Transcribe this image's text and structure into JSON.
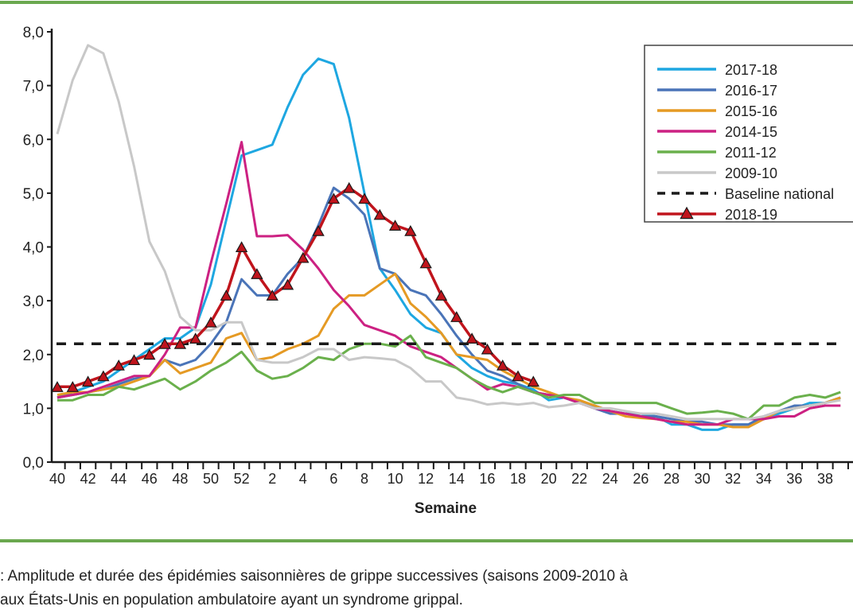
{
  "chart_data": {
    "type": "line",
    "xlabel": "Semaine",
    "ylabel": "",
    "ylim": [
      0,
      8
    ],
    "yticks": [
      "0,0",
      "1,0",
      "2,0",
      "3,0",
      "4,0",
      "5,0",
      "6,0",
      "7,0",
      "8,0"
    ],
    "x": [
      40,
      41,
      42,
      43,
      44,
      45,
      46,
      47,
      48,
      49,
      50,
      51,
      52,
      1,
      2,
      3,
      4,
      5,
      6,
      7,
      8,
      9,
      10,
      11,
      12,
      13,
      14,
      15,
      16,
      17,
      18,
      19,
      20,
      21,
      22,
      23,
      24,
      25,
      26,
      27,
      28,
      29,
      30,
      31,
      32,
      33,
      34,
      35,
      36,
      37,
      38,
      39
    ],
    "xtick_labels": [
      "40",
      "42",
      "44",
      "46",
      "48",
      "50",
      "52",
      "2",
      "4",
      "6",
      "8",
      "10",
      "12",
      "14",
      "16",
      "18",
      "20",
      "22",
      "24",
      "26",
      "28",
      "30",
      "32",
      "34",
      "36",
      "38"
    ],
    "grid": false,
    "legend_placement": "top-right",
    "series": [
      {
        "name": "2017-18",
        "color": "#1ea7e1",
        "values": [
          1.2,
          1.3,
          1.4,
          1.5,
          1.7,
          1.9,
          2.1,
          2.3,
          2.3,
          2.5,
          3.3,
          4.5,
          5.7,
          5.8,
          5.9,
          6.6,
          7.2,
          7.5,
          7.4,
          6.4,
          5.0,
          3.6,
          3.2,
          2.75,
          2.5,
          2.4,
          2.0,
          1.75,
          1.6,
          1.5,
          1.45,
          1.35,
          1.15,
          1.2,
          1.1,
          1.05,
          0.95,
          0.9,
          0.9,
          0.85,
          0.7,
          0.7,
          0.6,
          0.6,
          0.7,
          0.7,
          0.8,
          0.9,
          1.0,
          1.1,
          1.1,
          1.2
        ]
      },
      {
        "name": "2016-17",
        "color": "#4a74b8",
        "values": [
          1.2,
          1.25,
          1.3,
          1.35,
          1.45,
          1.55,
          1.6,
          1.9,
          1.8,
          1.9,
          2.2,
          2.6,
          3.4,
          3.1,
          3.1,
          3.5,
          3.8,
          4.4,
          5.1,
          4.9,
          4.6,
          3.6,
          3.5,
          3.2,
          3.1,
          2.75,
          2.35,
          2.0,
          1.7,
          1.6,
          1.45,
          1.3,
          1.25,
          1.2,
          1.1,
          1.0,
          0.9,
          0.9,
          0.85,
          0.85,
          0.8,
          0.75,
          0.75,
          0.7,
          0.7,
          0.7,
          0.85,
          0.95,
          1.05,
          1.05,
          1.1,
          1.2
        ]
      },
      {
        "name": "2015-16",
        "color": "#e59a24",
        "values": [
          1.25,
          1.3,
          1.3,
          1.35,
          1.4,
          1.5,
          1.6,
          1.9,
          1.65,
          1.75,
          1.85,
          2.3,
          2.4,
          1.9,
          1.95,
          2.1,
          2.2,
          2.35,
          2.85,
          3.1,
          3.1,
          3.3,
          3.5,
          2.95,
          2.7,
          2.4,
          2.0,
          1.95,
          1.9,
          1.7,
          1.55,
          1.4,
          1.3,
          1.2,
          1.15,
          1.05,
          0.95,
          0.85,
          0.82,
          0.8,
          0.75,
          0.75,
          0.7,
          0.7,
          0.65,
          0.65,
          0.8,
          0.95,
          1.0,
          1.05,
          1.1,
          1.2
        ]
      },
      {
        "name": "2014-15",
        "color": "#cc2182",
        "values": [
          1.2,
          1.25,
          1.3,
          1.4,
          1.5,
          1.6,
          1.6,
          2.0,
          2.5,
          2.5,
          3.7,
          4.8,
          5.95,
          4.2,
          4.2,
          4.22,
          3.95,
          3.6,
          3.2,
          2.9,
          2.55,
          2.45,
          2.35,
          2.15,
          2.05,
          1.95,
          1.75,
          1.55,
          1.35,
          1.45,
          1.4,
          1.3,
          1.25,
          1.2,
          1.1,
          1.0,
          0.95,
          0.9,
          0.85,
          0.8,
          0.75,
          0.7,
          0.7,
          0.7,
          0.8,
          0.8,
          0.8,
          0.85,
          0.85,
          1.0,
          1.05,
          1.05
        ]
      },
      {
        "name": "2011-12",
        "color": "#6ab04c",
        "values": [
          1.15,
          1.15,
          1.25,
          1.25,
          1.4,
          1.35,
          1.45,
          1.55,
          1.35,
          1.5,
          1.7,
          1.85,
          2.05,
          1.7,
          1.55,
          1.6,
          1.75,
          1.95,
          1.9,
          2.1,
          2.2,
          2.2,
          2.15,
          2.35,
          1.95,
          1.85,
          1.75,
          1.55,
          1.4,
          1.3,
          1.4,
          1.3,
          1.2,
          1.25,
          1.25,
          1.1,
          1.1,
          1.1,
          1.1,
          1.1,
          1.0,
          0.9,
          0.92,
          0.95,
          0.9,
          0.8,
          1.05,
          1.05,
          1.2,
          1.25,
          1.2,
          1.3
        ]
      },
      {
        "name": "2009-10",
        "color": "#c8c8c8",
        "values": [
          6.1,
          7.1,
          7.75,
          7.6,
          6.7,
          5.5,
          4.1,
          3.55,
          2.7,
          2.45,
          2.45,
          2.6,
          2.6,
          1.9,
          1.85,
          1.85,
          1.95,
          2.1,
          2.1,
          1.9,
          1.95,
          1.93,
          1.9,
          1.75,
          1.5,
          1.5,
          1.2,
          1.15,
          1.07,
          1.1,
          1.07,
          1.1,
          1.02,
          1.05,
          1.1,
          1.0,
          1.0,
          0.95,
          0.9,
          0.9,
          0.85,
          0.8,
          0.8,
          0.8,
          0.8,
          0.8,
          0.85,
          0.95,
          1.0,
          1.05,
          1.1,
          1.15
        ]
      },
      {
        "name": "Baseline national",
        "color": "#1a1a1a",
        "dashed": true,
        "values": [
          2.2,
          2.2,
          2.2,
          2.2,
          2.2,
          2.2,
          2.2,
          2.2,
          2.2,
          2.2,
          2.2,
          2.2,
          2.2,
          2.2,
          2.2,
          2.2,
          2.2,
          2.2,
          2.2,
          2.2,
          2.2,
          2.2,
          2.2,
          2.2,
          2.2,
          2.2,
          2.2,
          2.2,
          2.2,
          2.2,
          2.2,
          2.2,
          2.2,
          2.2,
          2.2,
          2.2,
          2.2,
          2.2,
          2.2,
          2.2,
          2.2,
          2.2,
          2.2,
          2.2,
          2.2,
          2.2,
          2.2,
          2.2,
          2.2,
          2.2,
          2.2,
          2.2
        ]
      },
      {
        "name": "2018-19",
        "color": "#c0141c",
        "marker": "triangle",
        "values": [
          1.4,
          1.4,
          1.5,
          1.6,
          1.8,
          1.9,
          2.0,
          2.2,
          2.2,
          2.3,
          2.6,
          3.1,
          4.0,
          3.5,
          3.1,
          3.3,
          3.8,
          4.3,
          4.9,
          5.1,
          4.9,
          4.6,
          4.4,
          4.3,
          3.7,
          3.1,
          2.7,
          2.3,
          2.1,
          1.8,
          1.6,
          1.5,
          null,
          null,
          null,
          null,
          null,
          null,
          null,
          null,
          null,
          null,
          null,
          null,
          null,
          null,
          null,
          null,
          null,
          null,
          null,
          null
        ]
      }
    ]
  },
  "caption": {
    "line1": ": Amplitude et durée des épidémies saisonnières de grippe successives (saisons 2009-2010 à",
    "line2": "aux États-Unis en population ambulatoire ayant un syndrome grippal."
  },
  "colors": {
    "rule": "#6aa84f",
    "axis": "#1a1a1a"
  }
}
